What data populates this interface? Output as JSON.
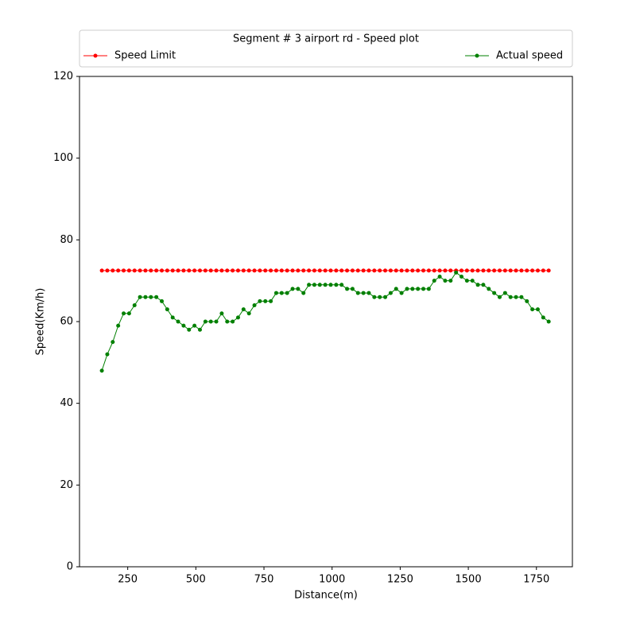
{
  "chart_data": {
    "type": "line",
    "legend_title": "Segment # 3 airport rd - Speed plot",
    "xlabel": "Distance(m)",
    "ylabel": "Speed(Km/h)",
    "x": [
      155,
      175,
      195,
      215,
      235,
      255,
      275,
      295,
      315,
      335,
      355,
      375,
      395,
      415,
      435,
      455,
      475,
      495,
      515,
      535,
      555,
      575,
      595,
      615,
      635,
      655,
      675,
      695,
      715,
      735,
      755,
      775,
      795,
      815,
      835,
      855,
      875,
      895,
      915,
      935,
      955,
      975,
      995,
      1015,
      1035,
      1055,
      1075,
      1095,
      1115,
      1135,
      1155,
      1175,
      1195,
      1215,
      1235,
      1255,
      1275,
      1295,
      1315,
      1335,
      1355,
      1375,
      1395,
      1415,
      1435,
      1455,
      1475,
      1495,
      1515,
      1535,
      1555,
      1575,
      1595,
      1615,
      1635,
      1655,
      1675,
      1695,
      1715,
      1735,
      1755,
      1775,
      1795
    ],
    "series": [
      {
        "name": "Speed Limit",
        "color": "#ff0000",
        "values": [
          72.5,
          72.5,
          72.5,
          72.5,
          72.5,
          72.5,
          72.5,
          72.5,
          72.5,
          72.5,
          72.5,
          72.5,
          72.5,
          72.5,
          72.5,
          72.5,
          72.5,
          72.5,
          72.5,
          72.5,
          72.5,
          72.5,
          72.5,
          72.5,
          72.5,
          72.5,
          72.5,
          72.5,
          72.5,
          72.5,
          72.5,
          72.5,
          72.5,
          72.5,
          72.5,
          72.5,
          72.5,
          72.5,
          72.5,
          72.5,
          72.5,
          72.5,
          72.5,
          72.5,
          72.5,
          72.5,
          72.5,
          72.5,
          72.5,
          72.5,
          72.5,
          72.5,
          72.5,
          72.5,
          72.5,
          72.5,
          72.5,
          72.5,
          72.5,
          72.5,
          72.5,
          72.5,
          72.5,
          72.5,
          72.5,
          72.5,
          72.5,
          72.5,
          72.5,
          72.5,
          72.5,
          72.5,
          72.5,
          72.5,
          72.5,
          72.5,
          72.5,
          72.5,
          72.5,
          72.5,
          72.5,
          72.5,
          72.5
        ]
      },
      {
        "name": "Actual speed",
        "color": "#008000",
        "values": [
          48,
          52,
          55,
          59,
          62,
          62,
          64,
          66,
          66,
          66,
          66,
          65,
          63,
          61,
          60,
          59,
          58,
          59,
          58,
          60,
          60,
          60,
          62,
          60,
          60,
          61,
          63,
          62,
          64,
          65,
          65,
          65,
          67,
          67,
          67,
          68,
          68,
          67,
          69,
          69,
          69,
          69,
          69,
          69,
          69,
          68,
          68,
          67,
          67,
          67,
          66,
          66,
          66,
          67,
          68,
          67,
          68,
          68,
          68,
          68,
          68,
          70,
          71,
          70,
          70,
          72,
          71,
          70,
          70,
          69,
          69,
          68,
          67,
          66,
          67,
          66,
          66,
          66,
          65,
          63,
          63,
          61,
          60
        ]
      }
    ],
    "xlim": [
      73,
      1882
    ],
    "xticks": [
      250,
      500,
      750,
      1000,
      1250,
      1500,
      1750
    ],
    "ylim": [
      0,
      120
    ],
    "yticks": [
      0,
      20,
      40,
      60,
      80,
      100,
      120
    ],
    "legend": "top-outside"
  }
}
